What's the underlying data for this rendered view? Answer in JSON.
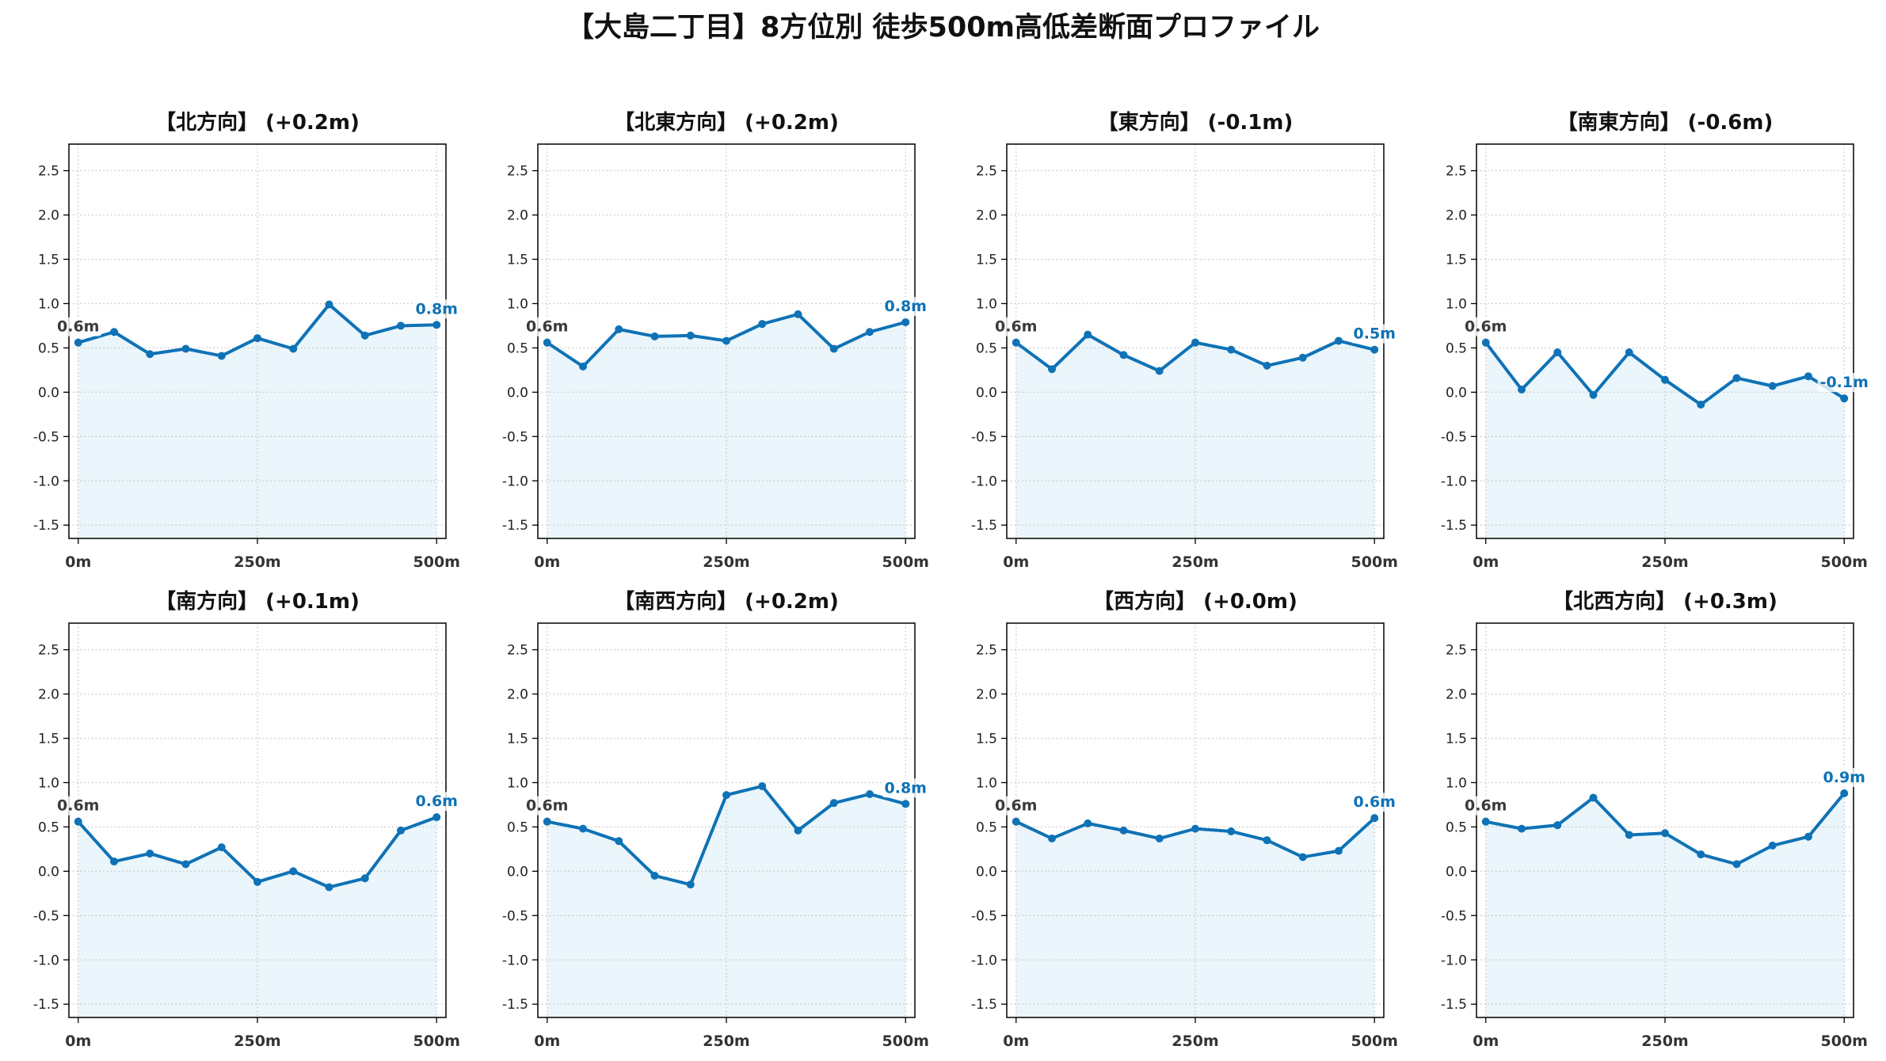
{
  "title": "【大島二丁目】8方位別 徒歩500m高低差断面プロファイル",
  "colors": {
    "line": "#0f72b6",
    "fill": "#eaf6fb",
    "grid": "#c6c6c6",
    "start_label": "#3b3b3b",
    "end_label": "#0f72b6"
  },
  "chart_data": [
    {
      "type": "line",
      "title": "【北方向】 (+0.2m)",
      "x": [
        0,
        50,
        100,
        150,
        200,
        250,
        300,
        350,
        400,
        450,
        500
      ],
      "values": [
        0.56,
        0.68,
        0.43,
        0.49,
        0.41,
        0.61,
        0.49,
        0.99,
        0.64,
        0.75,
        0.76
      ],
      "start_label": "0.6m",
      "end_label": "0.8m",
      "x_ticks": [
        0,
        250,
        500
      ],
      "x_tick_labels": [
        "0m",
        "250m",
        "500m"
      ],
      "y_ticks": [
        -1.5,
        -1.0,
        -0.5,
        0.0,
        0.5,
        1.0,
        1.5,
        2.0,
        2.5
      ],
      "y_tick_labels": [
        "-1.5",
        "-1.0",
        "-0.5",
        "0.0",
        "0.5",
        "1.0",
        "1.5",
        "2.0",
        "2.5"
      ],
      "xlim": [
        -13,
        513
      ],
      "ylim": [
        -1.65,
        2.8
      ],
      "grid": true,
      "filled": true
    },
    {
      "type": "line",
      "title": "【北東方向】 (+0.2m)",
      "x": [
        0,
        50,
        100,
        150,
        200,
        250,
        300,
        350,
        400,
        450,
        500
      ],
      "values": [
        0.56,
        0.29,
        0.71,
        0.63,
        0.64,
        0.58,
        0.77,
        0.88,
        0.49,
        0.68,
        0.79
      ],
      "start_label": "0.6m",
      "end_label": "0.8m",
      "x_ticks": [
        0,
        250,
        500
      ],
      "x_tick_labels": [
        "0m",
        "250m",
        "500m"
      ],
      "y_ticks": [
        -1.5,
        -1.0,
        -0.5,
        0.0,
        0.5,
        1.0,
        1.5,
        2.0,
        2.5
      ],
      "y_tick_labels": [
        "-1.5",
        "-1.0",
        "-0.5",
        "0.0",
        "0.5",
        "1.0",
        "1.5",
        "2.0",
        "2.5"
      ],
      "xlim": [
        -13,
        513
      ],
      "ylim": [
        -1.65,
        2.8
      ],
      "grid": true,
      "filled": true
    },
    {
      "type": "line",
      "title": "【東方向】 (-0.1m)",
      "x": [
        0,
        50,
        100,
        150,
        200,
        250,
        300,
        350,
        400,
        450,
        500
      ],
      "values": [
        0.56,
        0.26,
        0.65,
        0.42,
        0.24,
        0.56,
        0.48,
        0.3,
        0.39,
        0.58,
        0.48
      ],
      "start_label": "0.6m",
      "end_label": "0.5m",
      "x_ticks": [
        0,
        250,
        500
      ],
      "x_tick_labels": [
        "0m",
        "250m",
        "500m"
      ],
      "y_ticks": [
        -1.5,
        -1.0,
        -0.5,
        0.0,
        0.5,
        1.0,
        1.5,
        2.0,
        2.5
      ],
      "y_tick_labels": [
        "-1.5",
        "-1.0",
        "-0.5",
        "0.0",
        "0.5",
        "1.0",
        "1.5",
        "2.0",
        "2.5"
      ],
      "xlim": [
        -13,
        513
      ],
      "ylim": [
        -1.65,
        2.8
      ],
      "grid": true,
      "filled": true
    },
    {
      "type": "line",
      "title": "【南東方向】 (-0.6m)",
      "x": [
        0,
        50,
        100,
        150,
        200,
        250,
        300,
        350,
        400,
        450,
        500
      ],
      "values": [
        0.56,
        0.03,
        0.45,
        -0.03,
        0.45,
        0.14,
        -0.14,
        0.16,
        0.07,
        0.18,
        -0.07
      ],
      "start_label": "0.6m",
      "end_label": "-0.1m",
      "x_ticks": [
        0,
        250,
        500
      ],
      "x_tick_labels": [
        "0m",
        "250m",
        "500m"
      ],
      "y_ticks": [
        -1.5,
        -1.0,
        -0.5,
        0.0,
        0.5,
        1.0,
        1.5,
        2.0,
        2.5
      ],
      "y_tick_labels": [
        "-1.5",
        "-1.0",
        "-0.5",
        "0.0",
        "0.5",
        "1.0",
        "1.5",
        "2.0",
        "2.5"
      ],
      "xlim": [
        -13,
        513
      ],
      "ylim": [
        -1.65,
        2.8
      ],
      "grid": true,
      "filled": true
    },
    {
      "type": "line",
      "title": "【南方向】 (+0.1m)",
      "x": [
        0,
        50,
        100,
        150,
        200,
        250,
        300,
        350,
        400,
        450,
        500
      ],
      "values": [
        0.56,
        0.11,
        0.2,
        0.08,
        0.27,
        -0.12,
        0.0,
        -0.18,
        -0.08,
        0.46,
        0.61
      ],
      "start_label": "0.6m",
      "end_label": "0.6m",
      "x_ticks": [
        0,
        250,
        500
      ],
      "x_tick_labels": [
        "0m",
        "250m",
        "500m"
      ],
      "y_ticks": [
        -1.5,
        -1.0,
        -0.5,
        0.0,
        0.5,
        1.0,
        1.5,
        2.0,
        2.5
      ],
      "y_tick_labels": [
        "-1.5",
        "-1.0",
        "-0.5",
        "0.0",
        "0.5",
        "1.0",
        "1.5",
        "2.0",
        "2.5"
      ],
      "xlim": [
        -13,
        513
      ],
      "ylim": [
        -1.65,
        2.8
      ],
      "grid": true,
      "filled": true
    },
    {
      "type": "line",
      "title": "【南西方向】 (+0.2m)",
      "x": [
        0,
        50,
        100,
        150,
        200,
        250,
        300,
        350,
        400,
        450,
        500
      ],
      "values": [
        0.56,
        0.48,
        0.34,
        -0.05,
        -0.15,
        0.86,
        0.96,
        0.46,
        0.77,
        0.87,
        0.76
      ],
      "start_label": "0.6m",
      "end_label": "0.8m",
      "x_ticks": [
        0,
        250,
        500
      ],
      "x_tick_labels": [
        "0m",
        "250m",
        "500m"
      ],
      "y_ticks": [
        -1.5,
        -1.0,
        -0.5,
        0.0,
        0.5,
        1.0,
        1.5,
        2.0,
        2.5
      ],
      "y_tick_labels": [
        "-1.5",
        "-1.0",
        "-0.5",
        "0.0",
        "0.5",
        "1.0",
        "1.5",
        "2.0",
        "2.5"
      ],
      "xlim": [
        -13,
        513
      ],
      "ylim": [
        -1.65,
        2.8
      ],
      "grid": true,
      "filled": true
    },
    {
      "type": "line",
      "title": "【西方向】 (+0.0m)",
      "x": [
        0,
        50,
        100,
        150,
        200,
        250,
        300,
        350,
        400,
        450,
        500
      ],
      "values": [
        0.56,
        0.37,
        0.54,
        0.46,
        0.37,
        0.48,
        0.45,
        0.35,
        0.16,
        0.23,
        0.6
      ],
      "start_label": "0.6m",
      "end_label": "0.6m",
      "x_ticks": [
        0,
        250,
        500
      ],
      "x_tick_labels": [
        "0m",
        "250m",
        "500m"
      ],
      "y_ticks": [
        -1.5,
        -1.0,
        -0.5,
        0.0,
        0.5,
        1.0,
        1.5,
        2.0,
        2.5
      ],
      "y_tick_labels": [
        "-1.5",
        "-1.0",
        "-0.5",
        "0.0",
        "0.5",
        "1.0",
        "1.5",
        "2.0",
        "2.5"
      ],
      "xlim": [
        -13,
        513
      ],
      "ylim": [
        -1.65,
        2.8
      ],
      "grid": true,
      "filled": true
    },
    {
      "type": "line",
      "title": "【北西方向】 (+0.3m)",
      "x": [
        0,
        50,
        100,
        150,
        200,
        250,
        300,
        350,
        400,
        450,
        500
      ],
      "values": [
        0.56,
        0.48,
        0.52,
        0.83,
        0.41,
        0.43,
        0.19,
        0.08,
        0.29,
        0.39,
        0.88
      ],
      "start_label": "0.6m",
      "end_label": "0.9m",
      "x_ticks": [
        0,
        250,
        500
      ],
      "x_tick_labels": [
        "0m",
        "250m",
        "500m"
      ],
      "y_ticks": [
        -1.5,
        -1.0,
        -0.5,
        0.0,
        0.5,
        1.0,
        1.5,
        2.0,
        2.5
      ],
      "y_tick_labels": [
        "-1.5",
        "-1.0",
        "-0.5",
        "0.0",
        "0.5",
        "1.0",
        "1.5",
        "2.0",
        "2.5"
      ],
      "xlim": [
        -13,
        513
      ],
      "ylim": [
        -1.65,
        2.8
      ],
      "grid": true,
      "filled": true
    }
  ]
}
